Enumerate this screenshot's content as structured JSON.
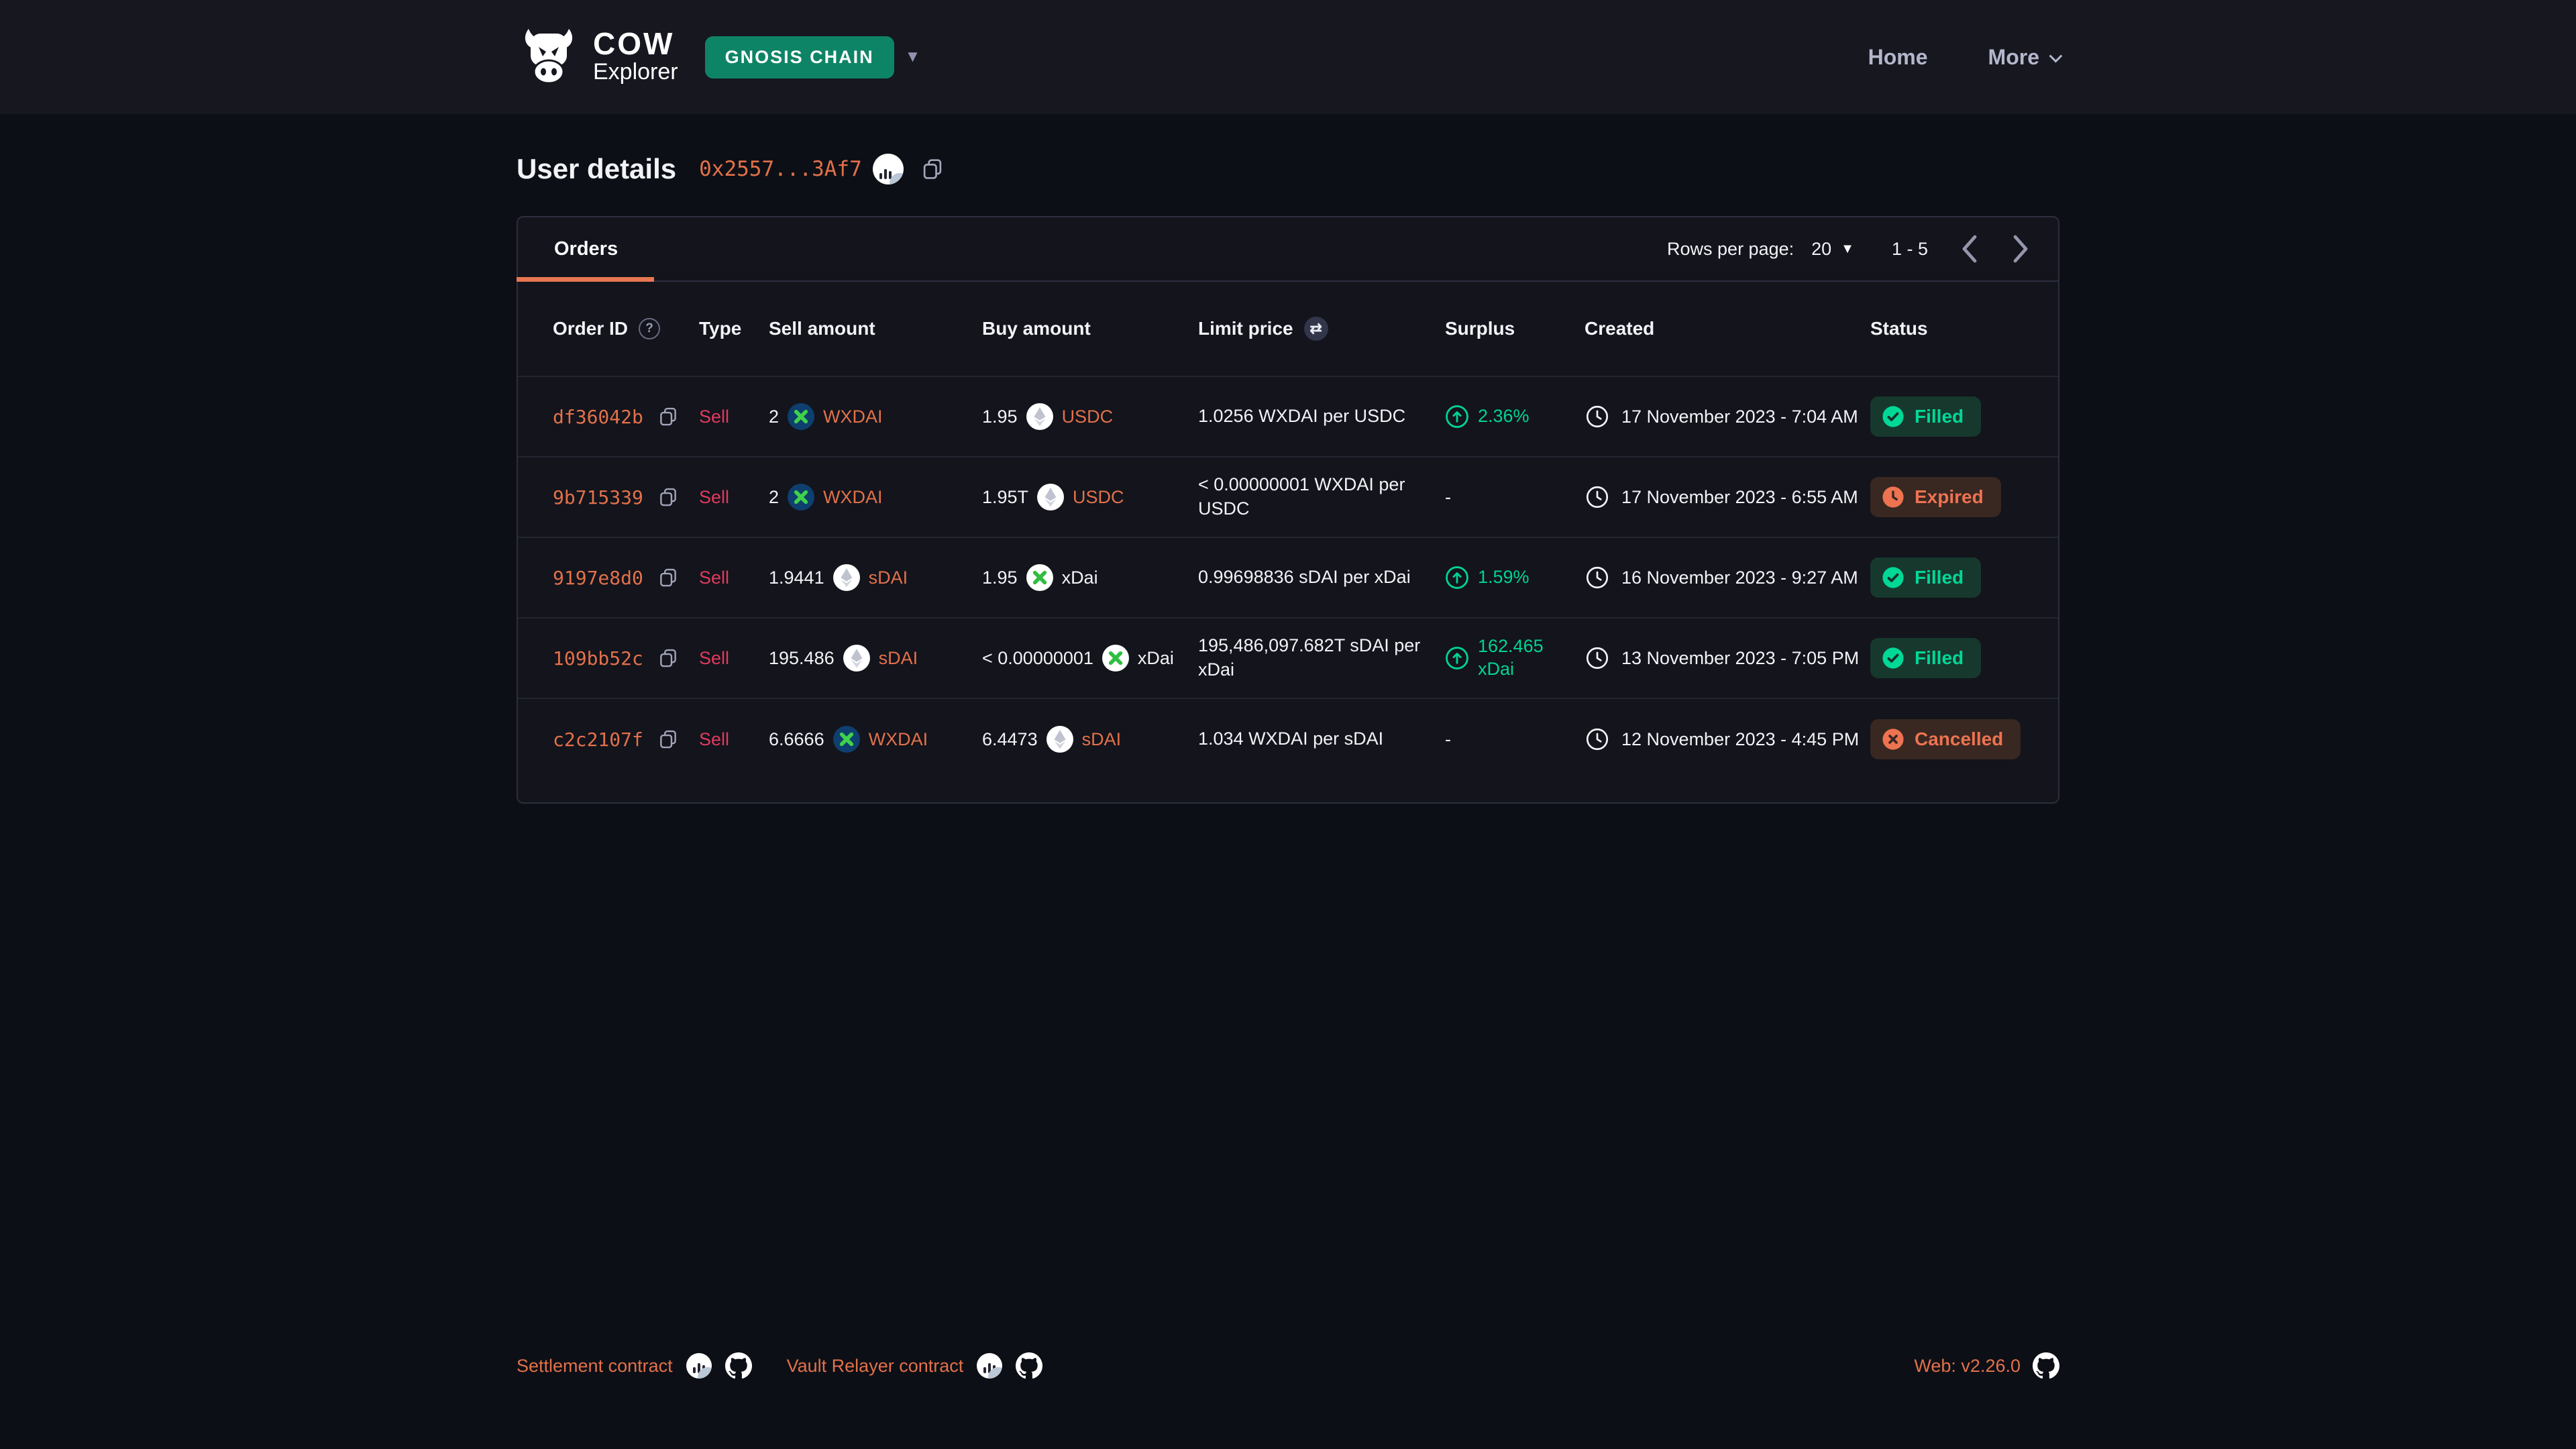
{
  "brand": {
    "name": "COW",
    "subtitle": "Explorer"
  },
  "network": {
    "label": "GNOSIS CHAIN"
  },
  "nav": {
    "home": "Home",
    "more": "More"
  },
  "page": {
    "title": "User details",
    "address": "0x2557...3Af7"
  },
  "panel": {
    "tab": "Orders",
    "rows_per_page_label": "Rows per page:",
    "rows_per_page_value": "20",
    "page_range": "1 - 5"
  },
  "table": {
    "columns": [
      "Order ID",
      "Type",
      "Sell amount",
      "Buy amount",
      "Limit price",
      "Surplus",
      "Created",
      "Status"
    ],
    "rows": [
      {
        "order_id": "df36042b",
        "type": "Sell",
        "sell": {
          "amount": "2",
          "token": "WXDAI",
          "icon": "wxdai",
          "link": true
        },
        "buy": {
          "amount": "1.95",
          "token": "USDC",
          "icon": "eth",
          "link": true
        },
        "limit_price": "1.0256 WXDAI per USDC",
        "surplus": {
          "text": "2.36%"
        },
        "created": "17 November 2023 - 7:04 AM",
        "status": "Filled"
      },
      {
        "order_id": "9b715339",
        "type": "Sell",
        "sell": {
          "amount": "2",
          "token": "WXDAI",
          "icon": "wxdai",
          "link": true
        },
        "buy": {
          "amount": "1.95T",
          "token": "USDC",
          "icon": "eth",
          "link": true
        },
        "limit_price": "< 0.00000001 WXDAI per USDC",
        "surplus": {
          "text": "-"
        },
        "created": "17 November 2023 - 6:55 AM",
        "status": "Expired"
      },
      {
        "order_id": "9197e8d0",
        "type": "Sell",
        "sell": {
          "amount": "1.9441",
          "token": "sDAI",
          "icon": "eth",
          "link": true
        },
        "buy": {
          "amount": "1.95",
          "token": "xDai",
          "icon": "xdai",
          "link": false
        },
        "limit_price": "0.99698836 sDAI per xDai",
        "surplus": {
          "text": "1.59%"
        },
        "created": "16 November 2023 - 9:27 AM",
        "status": "Filled"
      },
      {
        "order_id": "109bb52c",
        "type": "Sell",
        "sell": {
          "amount": "195.486",
          "token": "sDAI",
          "icon": "eth",
          "link": true
        },
        "buy": {
          "amount": "< 0.00000001",
          "token": "xDai",
          "icon": "xdai",
          "link": false
        },
        "limit_price": "195,486,097.682T sDAI per xDai",
        "surplus": {
          "text": "162.465 xDai"
        },
        "created": "13 November 2023 - 7:05 PM",
        "status": "Filled"
      },
      {
        "order_id": "c2c2107f",
        "type": "Sell",
        "sell": {
          "amount": "6.6666",
          "token": "WXDAI",
          "icon": "wxdai",
          "link": true
        },
        "buy": {
          "amount": "6.4473",
          "token": "sDAI",
          "icon": "eth",
          "link": true
        },
        "limit_price": "1.034 WXDAI per sDAI",
        "surplus": {
          "text": "-"
        },
        "created": "12 November 2023 - 4:45 PM",
        "status": "Cancelled"
      }
    ]
  },
  "footer": {
    "settlement": "Settlement contract",
    "vault_relayer": "Vault Relayer contract",
    "version": "Web: v2.26.0"
  },
  "colors": {
    "accent_orange": "#e2714a",
    "tab_underline": "#e77752",
    "sell_red": "#e23a5e",
    "green": "#00d395",
    "network_green": "#0e8466",
    "badge_green_bg": "#17382d",
    "badge_orange_bg": "#392721",
    "badge_orange_text": "#ed7351"
  }
}
